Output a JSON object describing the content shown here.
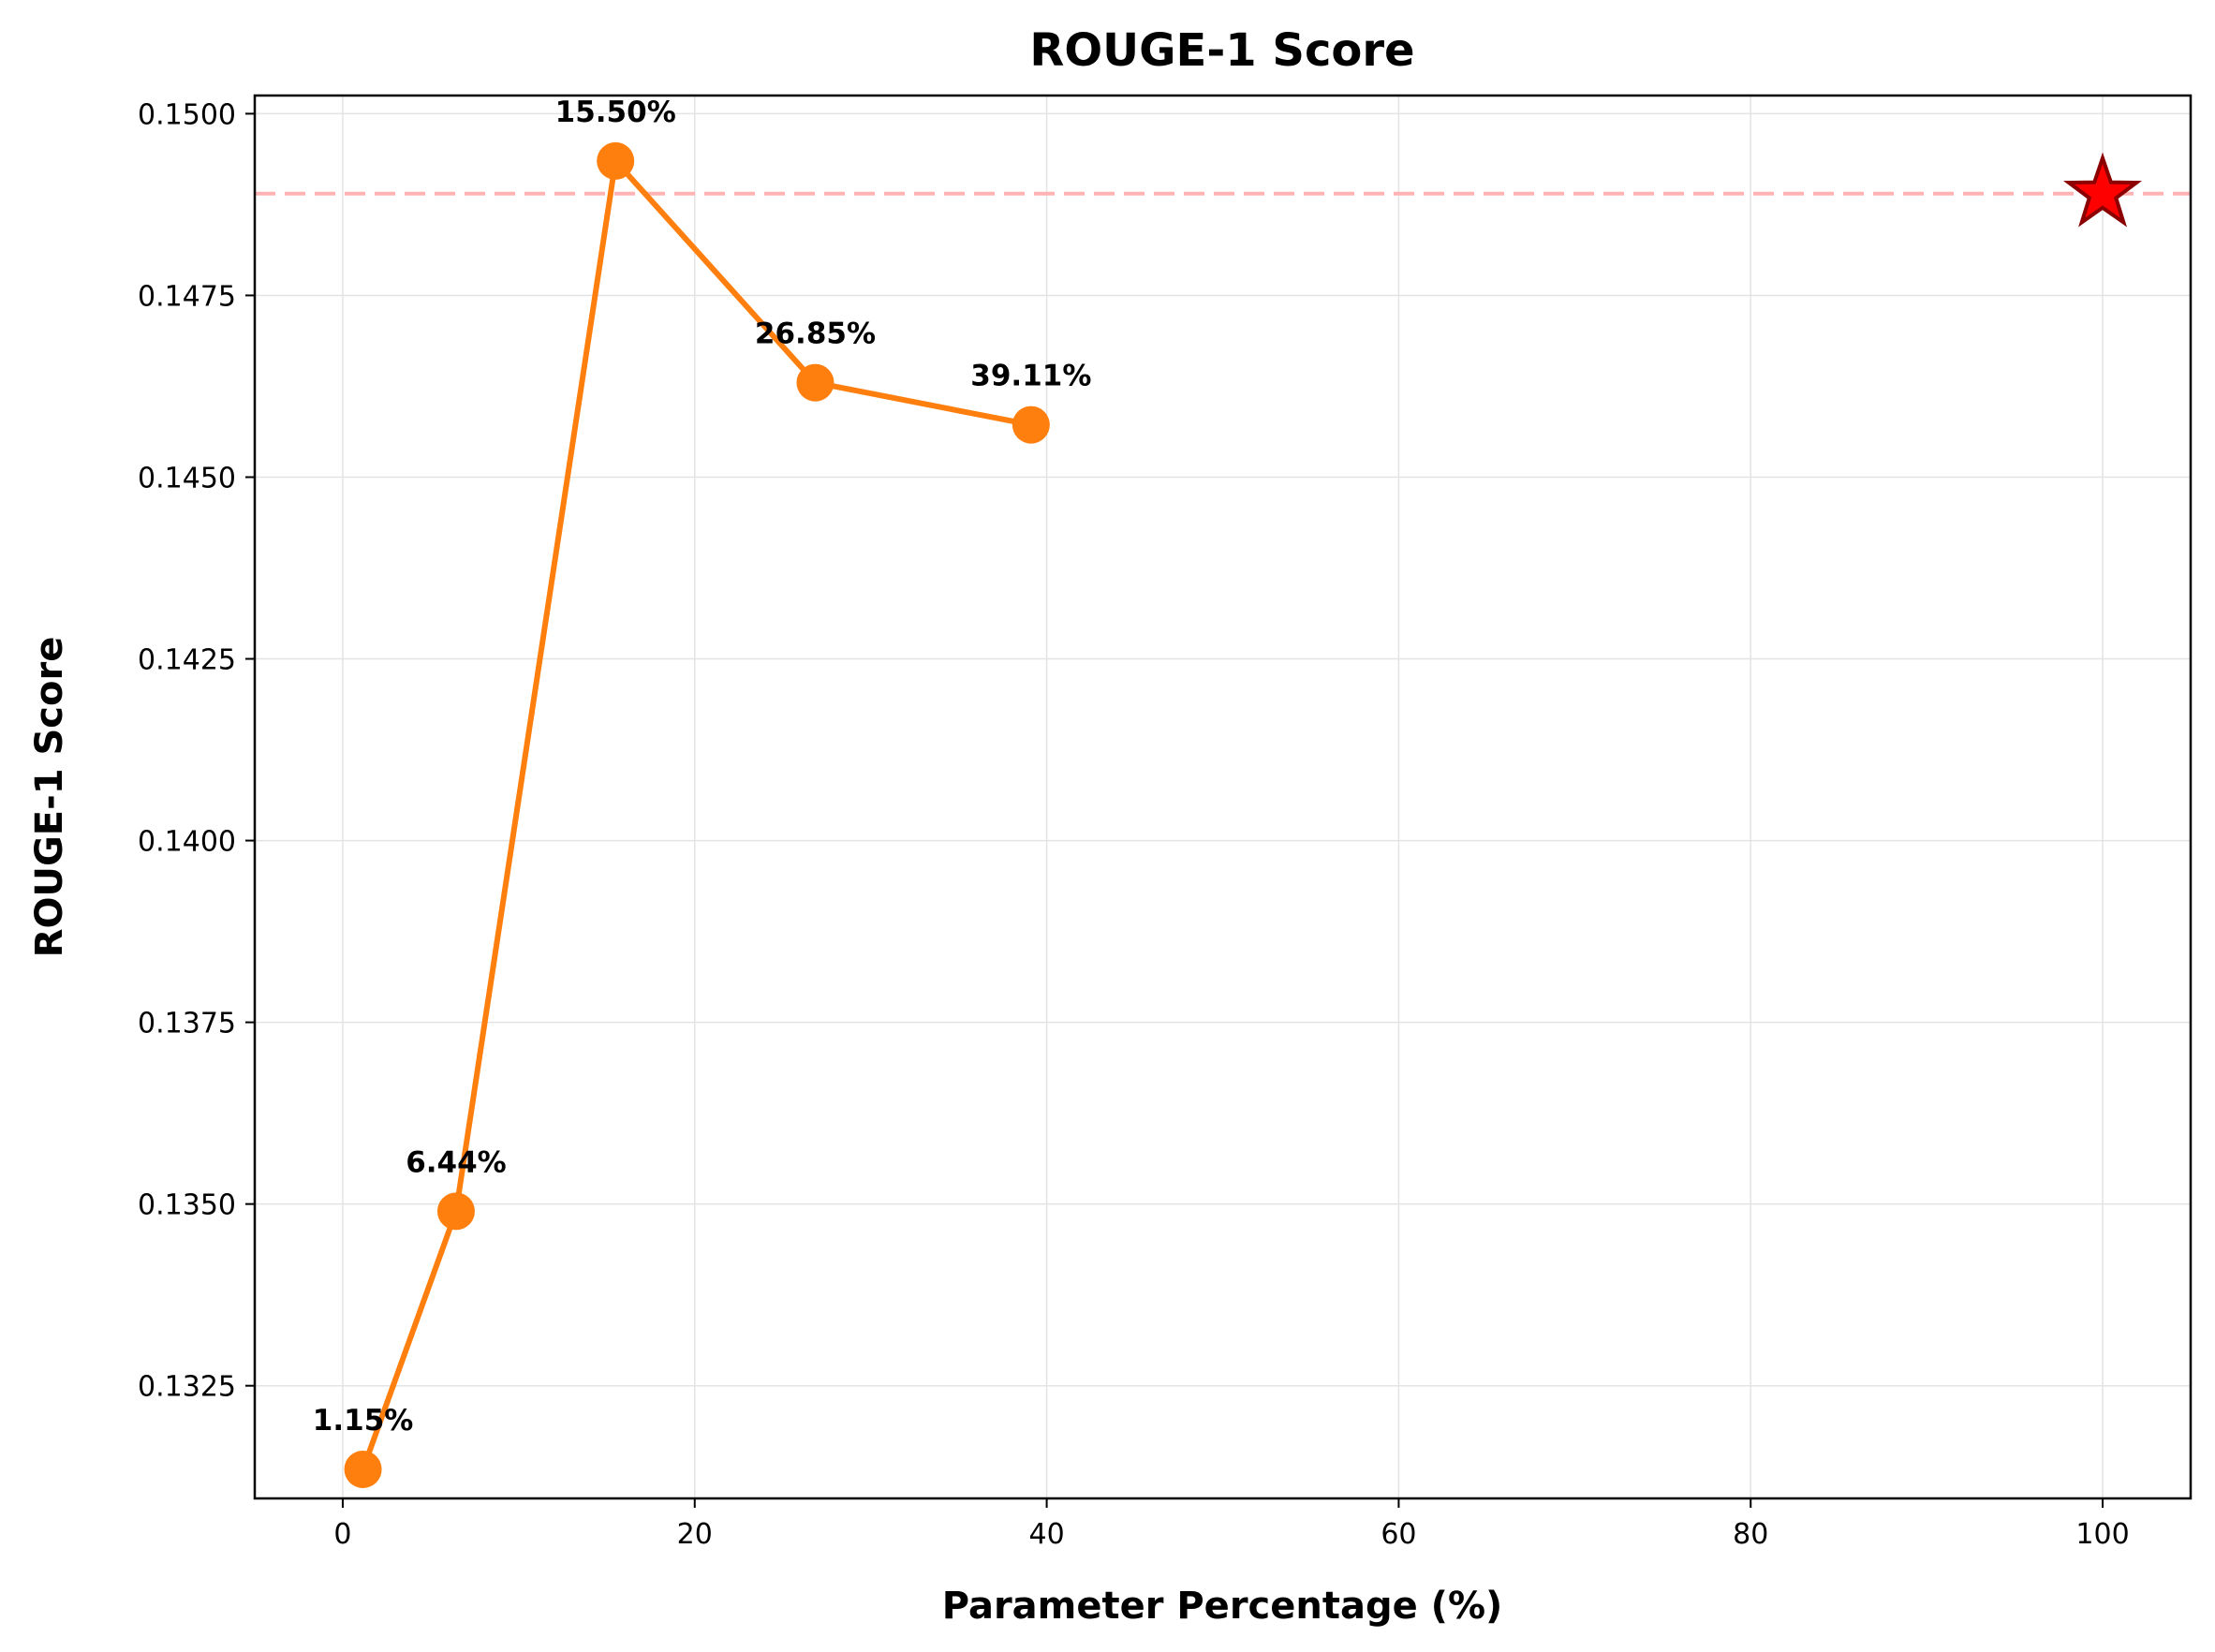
{
  "chart_data": {
    "type": "line",
    "title": "ROUGE-1 Score",
    "xlabel": "Parameter Percentage (%)",
    "ylabel": "ROUGE-1 Score",
    "xlim": [
      -5,
      105
    ],
    "ylim": [
      0.13095,
      0.15025
    ],
    "xticks": [
      0,
      20,
      40,
      60,
      80,
      100
    ],
    "yticks": [
      0.1325,
      0.135,
      0.1375,
      0.14,
      0.1425,
      0.145,
      0.1475,
      0.15
    ],
    "xtick_labels": [
      "0",
      "20",
      "40",
      "60",
      "80",
      "100"
    ],
    "ytick_labels": [
      "0.1325",
      "0.1350",
      "0.1375",
      "0.1400",
      "0.1425",
      "0.1450",
      "0.1475",
      "0.1500"
    ],
    "grid": true,
    "series": [
      {
        "color": "#ff7f0e",
        "points": [
          {
            "x": 1.15,
            "y": 0.13135,
            "label": "1.15%"
          },
          {
            "x": 6.44,
            "y": 0.1349,
            "label": "6.44%"
          },
          {
            "x": 15.5,
            "y": 0.14935,
            "label": "15.50%"
          },
          {
            "x": 26.85,
            "y": 0.1463,
            "label": "26.85%"
          },
          {
            "x": 39.11,
            "y": 0.14572,
            "label": "39.11%"
          }
        ]
      }
    ],
    "reference": {
      "x": 100,
      "y": 0.1489,
      "marker": "star",
      "marker_color": "#ff0000",
      "marker_edge": "#8b0000",
      "line_color": "#ffb3b3",
      "line_style": "dashed"
    }
  }
}
